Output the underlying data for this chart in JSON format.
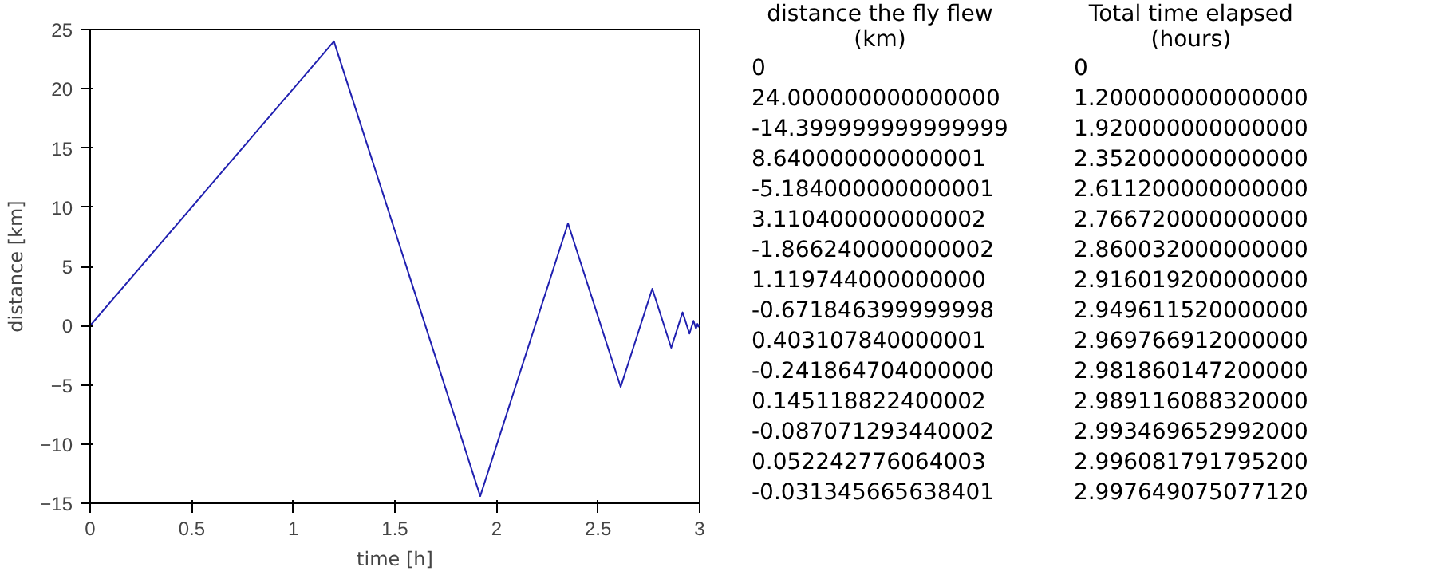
{
  "chart_data": {
    "type": "line",
    "xlabel": "time [h]",
    "ylabel": "distance [km]",
    "x": [
      0,
      1.2,
      1.92,
      2.352,
      2.6112,
      2.76672,
      2.860032,
      2.9160192,
      2.94961152,
      2.969766912,
      2.9818601472,
      2.98911608832,
      2.993469652992,
      2.9960817917952,
      2.99764907507712
    ],
    "series": [
      {
        "color": "#2020b0",
        "values": [
          0,
          24.0,
          -14.4,
          8.64,
          -5.184,
          3.1104,
          -1.86624,
          1.119744,
          -0.6718464,
          0.40310784,
          -0.241864704,
          0.1451188224,
          -0.08707129344,
          0.052242776064,
          -0.0313456656384
        ]
      }
    ],
    "xlim": [
      0,
      3
    ],
    "ylim": [
      -15,
      25
    ],
    "xticks": [
      0,
      0.5,
      1,
      1.5,
      2,
      2.5,
      3
    ],
    "yticks": [
      -15,
      -10,
      -5,
      0,
      5,
      10,
      15,
      20,
      25
    ],
    "grid": false,
    "marker": "none",
    "line_style": "solid",
    "annotations": [
      "distance the fly flew\n(km)",
      "Total time elapsed\n(hours)",
      "0",
      "24.000000000000000",
      "-14.399999999999999",
      "8.640000000000001",
      "-5.184000000000001",
      "3.110400000000002",
      "-1.866240000000002",
      "1.119744000000000",
      "-0.671846399999998",
      "0.403107840000001",
      "-0.241864704000000",
      "0.145118822400002",
      "-0.087071293440002",
      "0.052242776064003",
      "-0.031345665638401",
      "0",
      "1.200000000000000",
      "1.920000000000000",
      "2.352000000000000",
      "2.611200000000000",
      "2.766720000000000",
      "2.860032000000000",
      "2.916019200000000",
      "2.949611520000000",
      "2.969766912000000",
      "2.981860147200000",
      "2.989116088320000",
      "2.993469652992000",
      "2.996081791795200",
      "2.997649075077120"
    ]
  }
}
